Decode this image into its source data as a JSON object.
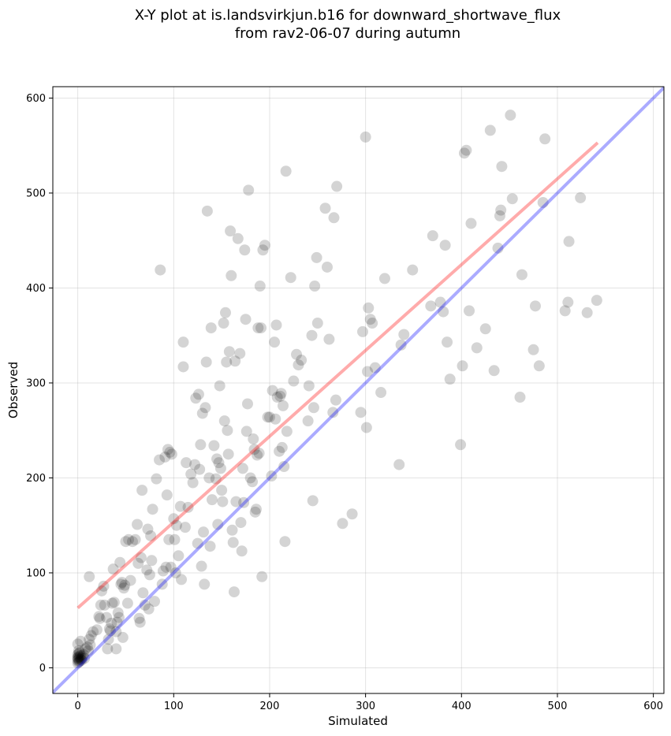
{
  "chart_data": {
    "type": "scatter",
    "title": "X-Y plot at is.landsvirkjun.b16 for downward_shortwave_flux",
    "subtitle": "from rav2-06-07 during autumn",
    "xlabel": "Simulated",
    "ylabel": "Observed",
    "xlim": [
      -26,
      611
    ],
    "ylim": [
      -27,
      612
    ],
    "xticks": [
      0,
      100,
      200,
      300,
      400,
      500,
      600
    ],
    "yticks": [
      0,
      100,
      200,
      300,
      400,
      500,
      600
    ],
    "grid": true,
    "colors": {
      "points": "#000000",
      "regression": "#ff0000",
      "identity": "#0000ff"
    },
    "regression_line": {
      "x": [
        0,
        542
      ],
      "y": [
        63,
        553
      ]
    },
    "identity_line": {
      "x": [
        -26,
        611
      ],
      "y": [
        -26,
        611
      ]
    },
    "points": [
      [
        0,
        10
      ],
      [
        1,
        12
      ],
      [
        0,
        8
      ],
      [
        2,
        11
      ],
      [
        1,
        9
      ],
      [
        3,
        13
      ],
      [
        0,
        14
      ],
      [
        1,
        6
      ],
      [
        2,
        7
      ],
      [
        0,
        5
      ],
      [
        4,
        10
      ],
      [
        5,
        12
      ],
      [
        1,
        15
      ],
      [
        3,
        9
      ],
      [
        2,
        16
      ],
      [
        0,
        11
      ],
      [
        6,
        14
      ],
      [
        4,
        8
      ],
      [
        1,
        18
      ],
      [
        7,
        10
      ],
      [
        0,
        25
      ],
      [
        3,
        28
      ],
      [
        8,
        20
      ],
      [
        10,
        22
      ],
      [
        12,
        30
      ],
      [
        14,
        34
      ],
      [
        13,
        24
      ],
      [
        16,
        38
      ],
      [
        11,
        18
      ],
      [
        12,
        96
      ],
      [
        20,
        40
      ],
      [
        22,
        54
      ],
      [
        24,
        66
      ],
      [
        25,
        81
      ],
      [
        23,
        52
      ],
      [
        27,
        86
      ],
      [
        28,
        66
      ],
      [
        30,
        53
      ],
      [
        31,
        20
      ],
      [
        32,
        30
      ],
      [
        33,
        41
      ],
      [
        34,
        39
      ],
      [
        35,
        47
      ],
      [
        36,
        68
      ],
      [
        37,
        104
      ],
      [
        38,
        69
      ],
      [
        40,
        20
      ],
      [
        40,
        38
      ],
      [
        41,
        48
      ],
      [
        42,
        58
      ],
      [
        43,
        53
      ],
      [
        44,
        111
      ],
      [
        45,
        88
      ],
      [
        46,
        90
      ],
      [
        47,
        32
      ],
      [
        48,
        84
      ],
      [
        49,
        87
      ],
      [
        50,
        133
      ],
      [
        52,
        68
      ],
      [
        53,
        135
      ],
      [
        55,
        92
      ],
      [
        57,
        133
      ],
      [
        60,
        135
      ],
      [
        62,
        151
      ],
      [
        63,
        110
      ],
      [
        64,
        52
      ],
      [
        65,
        48
      ],
      [
        66,
        116
      ],
      [
        67,
        187
      ],
      [
        68,
        79
      ],
      [
        70,
        66
      ],
      [
        72,
        103
      ],
      [
        73,
        146
      ],
      [
        74,
        62
      ],
      [
        75,
        98
      ],
      [
        76,
        139
      ],
      [
        77,
        113
      ],
      [
        78,
        167
      ],
      [
        80,
        70
      ],
      [
        82,
        199
      ],
      [
        85,
        219
      ],
      [
        86,
        419
      ],
      [
        88,
        88
      ],
      [
        89,
        102
      ],
      [
        91,
        222
      ],
      [
        92,
        106
      ],
      [
        93,
        182
      ],
      [
        94,
        230
      ],
      [
        95,
        135
      ],
      [
        96,
        227
      ],
      [
        97,
        106
      ],
      [
        98,
        225
      ],
      [
        100,
        157
      ],
      [
        101,
        135
      ],
      [
        102,
        100
      ],
      [
        103,
        150
      ],
      [
        105,
        118
      ],
      [
        107,
        170
      ],
      [
        108,
        93
      ],
      [
        110,
        317
      ],
      [
        110,
        343
      ],
      [
        112,
        148
      ],
      [
        113,
        216
      ],
      [
        115,
        169
      ],
      [
        118,
        204
      ],
      [
        120,
        195
      ],
      [
        122,
        214
      ],
      [
        123,
        284
      ],
      [
        125,
        131
      ],
      [
        126,
        288
      ],
      [
        127,
        209
      ],
      [
        128,
        235
      ],
      [
        129,
        107
      ],
      [
        130,
        268
      ],
      [
        131,
        143
      ],
      [
        132,
        88
      ],
      [
        133,
        274
      ],
      [
        134,
        322
      ],
      [
        135,
        481
      ],
      [
        137,
        200
      ],
      [
        138,
        128
      ],
      [
        139,
        358
      ],
      [
        140,
        177
      ],
      [
        142,
        234
      ],
      [
        144,
        199
      ],
      [
        145,
        220
      ],
      [
        146,
        151
      ],
      [
        147,
        216
      ],
      [
        148,
        297
      ],
      [
        149,
        210
      ],
      [
        150,
        187
      ],
      [
        151,
        175
      ],
      [
        152,
        363
      ],
      [
        153,
        260
      ],
      [
        154,
        374
      ],
      [
        155,
        322
      ],
      [
        156,
        250
      ],
      [
        157,
        225
      ],
      [
        158,
        333
      ],
      [
        159,
        460
      ],
      [
        160,
        413
      ],
      [
        161,
        145
      ],
      [
        162,
        132
      ],
      [
        163,
        80
      ],
      [
        164,
        323
      ],
      [
        165,
        175
      ],
      [
        167,
        452
      ],
      [
        169,
        331
      ],
      [
        170,
        153
      ],
      [
        171,
        123
      ],
      [
        172,
        210
      ],
      [
        173,
        174
      ],
      [
        174,
        440
      ],
      [
        175,
        367
      ],
      [
        176,
        249
      ],
      [
        177,
        278
      ],
      [
        178,
        503
      ],
      [
        180,
        200
      ],
      [
        182,
        196
      ],
      [
        183,
        241
      ],
      [
        184,
        230
      ],
      [
        185,
        164
      ],
      [
        186,
        167
      ],
      [
        187,
        224
      ],
      [
        188,
        358
      ],
      [
        189,
        226
      ],
      [
        190,
        402
      ],
      [
        191,
        358
      ],
      [
        192,
        96
      ],
      [
        193,
        440
      ],
      [
        195,
        445
      ],
      [
        198,
        264
      ],
      [
        200,
        264
      ],
      [
        202,
        202
      ],
      [
        203,
        292
      ],
      [
        205,
        343
      ],
      [
        206,
        262
      ],
      [
        207,
        361
      ],
      [
        208,
        285
      ],
      [
        210,
        228
      ],
      [
        211,
        286
      ],
      [
        212,
        289
      ],
      [
        213,
        232
      ],
      [
        214,
        276
      ],
      [
        215,
        212
      ],
      [
        216,
        133
      ],
      [
        217,
        523
      ],
      [
        218,
        249
      ],
      [
        222,
        411
      ],
      [
        225,
        302
      ],
      [
        228,
        330
      ],
      [
        230,
        319
      ],
      [
        233,
        324
      ],
      [
        240,
        260
      ],
      [
        241,
        297
      ],
      [
        244,
        350
      ],
      [
        245,
        176
      ],
      [
        246,
        274
      ],
      [
        247,
        402
      ],
      [
        249,
        432
      ],
      [
        250,
        363
      ],
      [
        258,
        484
      ],
      [
        260,
        422
      ],
      [
        262,
        346
      ],
      [
        266,
        269
      ],
      [
        267,
        474
      ],
      [
        269,
        282
      ],
      [
        270,
        507
      ],
      [
        276,
        152
      ],
      [
        286,
        162
      ],
      [
        295,
        269
      ],
      [
        297,
        354
      ],
      [
        300,
        559
      ],
      [
        301,
        253
      ],
      [
        302,
        312
      ],
      [
        303,
        379
      ],
      [
        305,
        367
      ],
      [
        307,
        363
      ],
      [
        310,
        316
      ],
      [
        316,
        290
      ],
      [
        320,
        410
      ],
      [
        335,
        214
      ],
      [
        337,
        340
      ],
      [
        340,
        351
      ],
      [
        349,
        419
      ],
      [
        368,
        381
      ],
      [
        370,
        455
      ],
      [
        378,
        385
      ],
      [
        381,
        375
      ],
      [
        383,
        445
      ],
      [
        385,
        343
      ],
      [
        388,
        304
      ],
      [
        399,
        235
      ],
      [
        401,
        318
      ],
      [
        403,
        542
      ],
      [
        405,
        545
      ],
      [
        408,
        376
      ],
      [
        410,
        468
      ],
      [
        416,
        337
      ],
      [
        425,
        357
      ],
      [
        430,
        566
      ],
      [
        434,
        313
      ],
      [
        438,
        442
      ],
      [
        440,
        476
      ],
      [
        441,
        482
      ],
      [
        442,
        528
      ],
      [
        451,
        582
      ],
      [
        453,
        494
      ],
      [
        461,
        285
      ],
      [
        463,
        414
      ],
      [
        475,
        335
      ],
      [
        477,
        381
      ],
      [
        481,
        318
      ],
      [
        485,
        490
      ],
      [
        487,
        557
      ],
      [
        508,
        376
      ],
      [
        511,
        385
      ],
      [
        512,
        449
      ],
      [
        524,
        495
      ],
      [
        531,
        374
      ],
      [
        541,
        387
      ]
    ]
  }
}
